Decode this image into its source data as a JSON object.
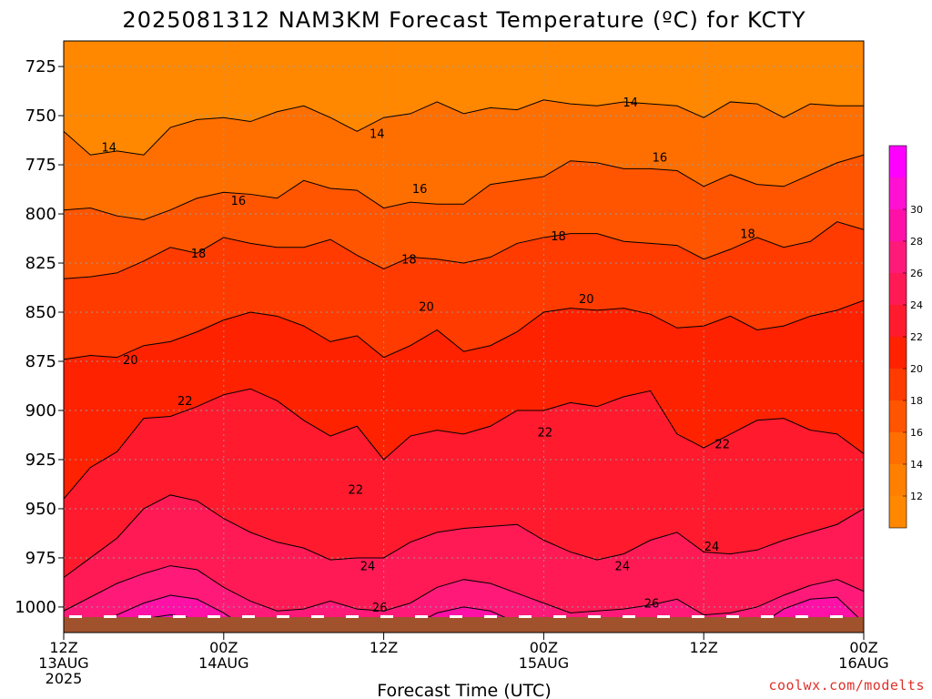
{
  "title": "2025081312 NAM3KM Forecast Temperature (ºC) for KCTY",
  "x_axis_title": "Forecast Time (UTC)",
  "credit": "coolwx.com/modelts",
  "colors": {
    "bands": [
      "#ff8800",
      "#ff7f00",
      "#ff6f00",
      "#ff5500",
      "#ff3b00",
      "#ff2200",
      "#ff1a2e",
      "#ff1a55",
      "#ff1a7a",
      "#ff10a6",
      "#ff10d2",
      "#ff00ff"
    ],
    "ground": "#a0522d",
    "grid": "#9a9a9a"
  },
  "chart_data": {
    "type": "heatmap",
    "variable": "Temperature (ºC)",
    "y_axis": {
      "label": "",
      "ticks": [
        725,
        750,
        775,
        800,
        825,
        850,
        875,
        900,
        925,
        950,
        975,
        1000
      ],
      "range": [
        712,
        1013
      ],
      "inverted": true
    },
    "x_axis": {
      "ticks": [
        {
          "hour": 0,
          "lines": [
            "12Z",
            "13AUG",
            "2025"
          ]
        },
        {
          "hour": 12,
          "lines": [
            "00Z",
            "14AUG"
          ]
        },
        {
          "hour": 24,
          "lines": [
            "12Z"
          ]
        },
        {
          "hour": 36,
          "lines": [
            "00Z",
            "15AUG"
          ]
        },
        {
          "hour": 48,
          "lines": [
            "12Z"
          ]
        },
        {
          "hour": 60,
          "lines": [
            "00Z",
            "16AUG"
          ]
        }
      ],
      "range": [
        0,
        60
      ]
    },
    "colorbar": {
      "ticks": [
        12,
        14,
        16,
        18,
        20,
        22,
        24,
        26,
        28,
        30
      ]
    },
    "contours": [
      {
        "level": 14,
        "hours": [
          0,
          2,
          4,
          6,
          8,
          10,
          12,
          14,
          16,
          18,
          20,
          22,
          24,
          26,
          28,
          30,
          32,
          34,
          36,
          38,
          40,
          42,
          44,
          46,
          48,
          50,
          52,
          54,
          56,
          58,
          60
        ],
        "p": [
          758,
          770,
          768,
          770,
          756,
          752,
          751,
          753,
          748,
          745,
          751,
          758,
          751,
          749,
          743,
          749,
          746,
          747,
          742,
          744,
          745,
          743,
          744,
          745,
          751,
          743,
          744,
          751,
          744,
          745,
          745
        ]
      },
      {
        "level": 16,
        "hours": [
          0,
          2,
          4,
          6,
          8,
          10,
          12,
          14,
          16,
          18,
          20,
          22,
          24,
          26,
          28,
          30,
          32,
          34,
          36,
          38,
          40,
          42,
          44,
          46,
          48,
          50,
          52,
          54,
          56,
          58,
          60
        ],
        "p": [
          798,
          797,
          801,
          803,
          798,
          792,
          789,
          790,
          792,
          783,
          787,
          788,
          797,
          794,
          795,
          795,
          785,
          783,
          781,
          773,
          774,
          777,
          777,
          778,
          786,
          780,
          785,
          786,
          780,
          774,
          770
        ]
      },
      {
        "level": 18,
        "hours": [
          0,
          2,
          4,
          6,
          8,
          10,
          12,
          14,
          16,
          18,
          20,
          22,
          24,
          26,
          28,
          30,
          32,
          34,
          36,
          38,
          40,
          42,
          44,
          46,
          48,
          50,
          52,
          54,
          56,
          58,
          60
        ],
        "p": [
          833,
          832,
          830,
          824,
          817,
          820,
          812,
          815,
          817,
          817,
          813,
          821,
          828,
          822,
          823,
          825,
          822,
          815,
          812,
          810,
          810,
          814,
          815,
          816,
          823,
          818,
          812,
          817,
          814,
          804,
          808
        ]
      },
      {
        "level": 20,
        "hours": [
          0,
          2,
          4,
          6,
          8,
          10,
          12,
          14,
          16,
          18,
          20,
          22,
          24,
          26,
          28,
          30,
          32,
          34,
          36,
          38,
          40,
          42,
          44,
          46,
          48,
          50,
          52,
          54,
          56,
          58,
          60
        ],
        "p": [
          874,
          872,
          873,
          867,
          865,
          860,
          854,
          850,
          852,
          857,
          865,
          862,
          873,
          867,
          859,
          870,
          867,
          860,
          850,
          848,
          849,
          848,
          851,
          858,
          857,
          852,
          859,
          857,
          852,
          849,
          844
        ]
      },
      {
        "level": 22,
        "hours": [
          0,
          2,
          4,
          6,
          8,
          10,
          12,
          14,
          16,
          18,
          20,
          22,
          24,
          26,
          28,
          30,
          32,
          34,
          36,
          38,
          40,
          42,
          44,
          46,
          48,
          50,
          52,
          54,
          56,
          58,
          60
        ],
        "p": [
          945,
          929,
          921,
          904,
          903,
          898,
          892,
          889,
          895,
          905,
          913,
          908,
          925,
          913,
          910,
          912,
          908,
          900,
          900,
          896,
          898,
          893,
          890,
          912,
          919,
          912,
          905,
          904,
          910,
          912,
          922
        ]
      },
      {
        "level": 24,
        "hours": [
          0,
          2,
          4,
          6,
          8,
          10,
          12,
          14,
          16,
          18,
          20,
          22,
          24,
          26,
          28,
          30,
          32,
          34,
          36,
          38,
          40,
          42,
          44,
          46,
          48,
          50,
          52,
          54,
          56,
          58,
          60
        ],
        "p": [
          985,
          975,
          965,
          950,
          943,
          946,
          955,
          962,
          967,
          970,
          976,
          975,
          975,
          967,
          962,
          960,
          959,
          958,
          966,
          972,
          976,
          973,
          966,
          962,
          972,
          973,
          971,
          966,
          962,
          958,
          950
        ]
      },
      {
        "level": 26,
        "hours": [
          0,
          2,
          4,
          6,
          8,
          10,
          12,
          14,
          16,
          18,
          20,
          22,
          24,
          26,
          28,
          30,
          32,
          34,
          36,
          38,
          40,
          42,
          44,
          46,
          48,
          50,
          52,
          54,
          56,
          58,
          60
        ],
        "p": [
          1002,
          995,
          988,
          983,
          979,
          981,
          990,
          997,
          1002,
          1001,
          997,
          1001,
          1002,
          998,
          990,
          986,
          988,
          993,
          998,
          1003,
          1002,
          1001,
          999,
          996,
          1004,
          1003,
          1000,
          994,
          989,
          986,
          992
        ]
      },
      {
        "level": 28,
        "hours": [
          0,
          2,
          4,
          6,
          8,
          10,
          12,
          14,
          16,
          18,
          20,
          22,
          24,
          26,
          28,
          30,
          32,
          34,
          36,
          38,
          40,
          42,
          44,
          46,
          48,
          50,
          52,
          54,
          56,
          58,
          60
        ],
        "p": [
          1014,
          1012,
          1004,
          998,
          994,
          996,
          1003,
          1012,
          1014,
          1014,
          1014,
          1014,
          1014,
          1010,
          1003,
          1000,
          1002,
          1008,
          1014,
          1014,
          1014,
          1014,
          1014,
          1014,
          1014,
          1014,
          1010,
          1001,
          996,
          995,
          1008
        ]
      },
      {
        "level": 30,
        "hours": [
          0,
          2,
          4,
          6,
          8,
          10,
          12,
          14,
          16,
          18,
          20,
          22,
          24,
          26,
          28,
          30,
          32,
          34,
          36,
          38,
          40,
          42,
          44,
          46,
          48,
          50,
          52,
          54,
          56,
          58,
          60
        ],
        "p": [
          1014,
          1014,
          1012,
          1006,
          1004,
          1006,
          1012,
          1014,
          1014,
          1014,
          1014,
          1014,
          1014,
          1014,
          1012,
          1010,
          1011,
          1014,
          1014,
          1014,
          1014,
          1014,
          1014,
          1014,
          1014,
          1014,
          1014,
          1010,
          1006,
          1006,
          1014
        ]
      }
    ],
    "contour_labels": [
      {
        "text": "14",
        "hour": 3.4,
        "p": 766
      },
      {
        "text": "14",
        "hour": 23.5,
        "p": 759
      },
      {
        "text": "14",
        "hour": 42.5,
        "p": 743
      },
      {
        "text": "16",
        "hour": 13.1,
        "p": 793
      },
      {
        "text": "16",
        "hour": 26.7,
        "p": 787
      },
      {
        "text": "16",
        "hour": 44.7,
        "p": 771
      },
      {
        "text": "18",
        "hour": 10.1,
        "p": 820
      },
      {
        "text": "18",
        "hour": 25.9,
        "p": 823
      },
      {
        "text": "18",
        "hour": 37.1,
        "p": 811
      },
      {
        "text": "18",
        "hour": 51.3,
        "p": 810
      },
      {
        "text": "20",
        "hour": 5,
        "p": 874
      },
      {
        "text": "20",
        "hour": 27.2,
        "p": 847
      },
      {
        "text": "20",
        "hour": 39.2,
        "p": 843
      },
      {
        "text": "22",
        "hour": 9.1,
        "p": 895
      },
      {
        "text": "22",
        "hour": 21.9,
        "p": 940
      },
      {
        "text": "22",
        "hour": 36.1,
        "p": 911
      },
      {
        "text": "22",
        "hour": 49.4,
        "p": 917
      },
      {
        "text": "24",
        "hour": 22.8,
        "p": 979
      },
      {
        "text": "24",
        "hour": 41.9,
        "p": 979
      },
      {
        "text": "24",
        "hour": 48.6,
        "p": 969
      },
      {
        "text": "26",
        "hour": 23.7,
        "p": 1000
      },
      {
        "text": "26",
        "hour": 44.1,
        "p": 998
      }
    ],
    "legend_position": "right"
  }
}
